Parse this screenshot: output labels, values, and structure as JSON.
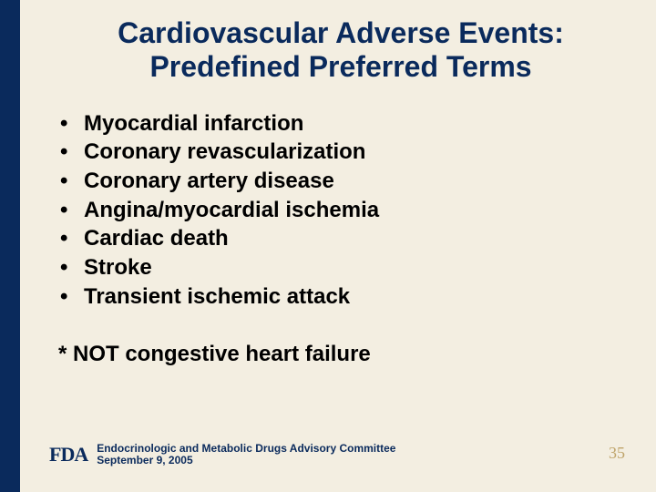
{
  "colors": {
    "sidebar": "#0a2a5c",
    "background": "#f3eee1",
    "title": "#0a2a5c",
    "body_text": "#000000",
    "footer_text": "#0a2a5c",
    "fda_mark": "#0a2a5c",
    "page_num": "#bfa46a"
  },
  "title": {
    "line1": "Cardiovascular Adverse Events:",
    "line2": "Predefined Preferred Terms",
    "fontsize": 32
  },
  "bullets": {
    "fontsize": 24,
    "items": [
      "Myocardial infarction",
      "Coronary revascularization",
      "Coronary artery disease",
      "Angina/myocardial ischemia",
      "Cardiac death",
      "Stroke",
      "Transient ischemic attack"
    ]
  },
  "footnote": {
    "text": "* NOT congestive heart failure",
    "fontsize": 24
  },
  "footer": {
    "mark": "FDA",
    "mark_fontsize": 22,
    "line1": "Endocrinologic and Metabolic Drugs Advisory Committee",
    "line2": "September 9, 2005",
    "fontsize": 12
  },
  "page_number": {
    "value": "35",
    "fontsize": 18
  }
}
